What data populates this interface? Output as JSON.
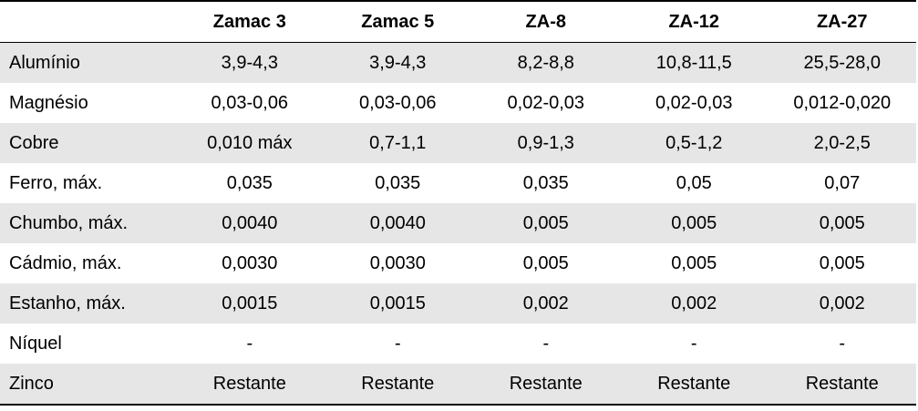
{
  "table": {
    "corner": "",
    "headers": [
      "Zamac 3",
      "Zamac 5",
      "ZA-8",
      "ZA-12",
      "ZA-27"
    ],
    "rows": [
      {
        "label": "Alumínio",
        "values": [
          "3,9-4,3",
          "3,9-4,3",
          "8,2-8,8",
          "10,8-11,5",
          "25,5-28,0"
        ]
      },
      {
        "label": "Magnésio",
        "values": [
          "0,03-0,06",
          "0,03-0,06",
          "0,02-0,03",
          "0,02-0,03",
          "0,012-0,020"
        ]
      },
      {
        "label": "Cobre",
        "values": [
          "0,010 máx",
          "0,7-1,1",
          "0,9-1,3",
          "0,5-1,2",
          "2,0-2,5"
        ]
      },
      {
        "label": "Ferro, máx.",
        "values": [
          "0,035",
          "0,035",
          "0,035",
          "0,05",
          "0,07"
        ]
      },
      {
        "label": "Chumbo, máx.",
        "values": [
          "0,0040",
          "0,0040",
          "0,005",
          "0,005",
          "0,005"
        ]
      },
      {
        "label": "Cádmio, máx.",
        "values": [
          "0,0030",
          "0,0030",
          "0,005",
          "0,005",
          "0,005"
        ]
      },
      {
        "label": "Estanho, máx.",
        "values": [
          "0,0015",
          "0,0015",
          "0,002",
          "0,002",
          "0,002"
        ]
      },
      {
        "label": "Níquel",
        "values": [
          "-",
          "-",
          "-",
          "-",
          "-"
        ]
      },
      {
        "label": "Zinco",
        "values": [
          "Restante",
          "Restante",
          "Restante",
          "Restante",
          "Restante"
        ]
      }
    ]
  },
  "colors": {
    "shaded_row": "#e6e6e6",
    "plain_row": "#ffffff",
    "rule": "#000000"
  }
}
